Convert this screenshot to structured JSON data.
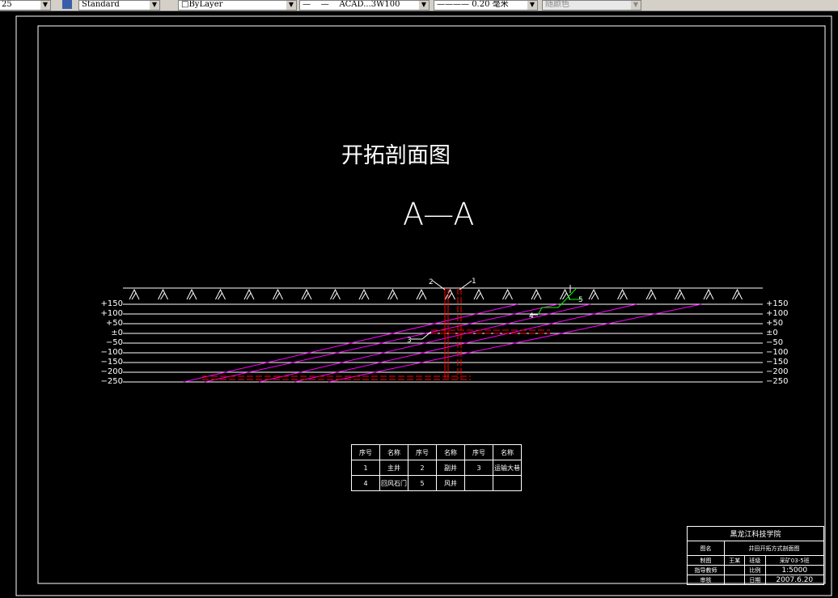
{
  "toolbar": {
    "scale_value": "25",
    "text_style": "Standard",
    "layer": "ByLayer",
    "linetype": "ACAD...3W100",
    "lineweight": "0.20 毫米",
    "color": "随颜色"
  },
  "drawing": {
    "title": "开拓剖面图",
    "section": "A—A",
    "levels": [
      "+150",
      "+100",
      "+50",
      "±0",
      "−50",
      "−100",
      "−150",
      "−200",
      "−250"
    ],
    "callouts": [
      "1",
      "2",
      "3",
      "4",
      "5"
    ],
    "colors": {
      "seam": "#ff00ff",
      "roadway": "#ff0000",
      "ventilation": "#00ff00",
      "line": "#ffffff"
    }
  },
  "legend": {
    "headers": [
      "序号",
      "名称",
      "序号",
      "名称",
      "序号",
      "名称"
    ],
    "rows": [
      [
        "1",
        "主井",
        "2",
        "副井",
        "3",
        "运输大巷"
      ],
      [
        "4",
        "回风石门",
        "5",
        "风井",
        "",
        ""
      ]
    ]
  },
  "title_block": {
    "school": "黑龙江科技学院",
    "name_label": "图名",
    "name_value": "井田开拓方式剖面图",
    "rows": [
      [
        "制图",
        "王某",
        "班级",
        "采矿03-5班"
      ],
      [
        "指导教师",
        "",
        "比例",
        "1:5000"
      ],
      [
        "审核",
        "",
        "日期",
        "2007.6.20"
      ]
    ]
  }
}
